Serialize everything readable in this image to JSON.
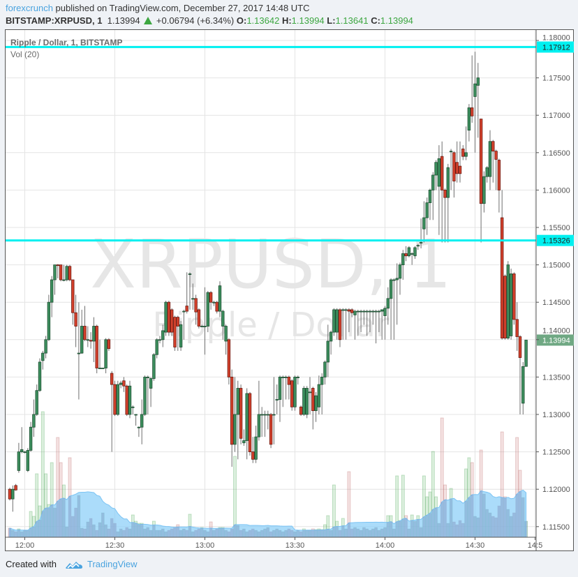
{
  "header": {
    "author": "forexcrunch",
    "published": "published on TradingView.com, December 27, 2017 14:48 UTC",
    "symbol": "BITSTAMP:XRPUSD, 1",
    "last": "1.13994",
    "change": "+0.06794 (+6.34%)",
    "o_label": "O:",
    "o": "1.13642",
    "h_label": "H:",
    "h": "1.13994",
    "l_label": "L:",
    "l": "1.13641",
    "c_label": "C:",
    "c": "1.13994",
    "up_icon": "triangle-up-icon"
  },
  "legend": {
    "series": "Ripple / Dollar, 1, BITSTAMP",
    "volume": "Vol (20)"
  },
  "watermark": {
    "line1": "XRPUSD, 1",
    "line2": "Ripple / Dollar"
  },
  "footer": {
    "created": "Created with",
    "brand": "TradingView",
    "logo_icon": "tradingview-logo-icon"
  },
  "colors": {
    "up": "#3d8f5e",
    "down": "#d5412c",
    "level_lines": "#00f0f0",
    "vol_ma": "#8fd0f8",
    "last_price_label": "#6fa883",
    "brand": "#4aa3df"
  },
  "chart_data": {
    "type": "candlestick",
    "interval_minutes": 1,
    "ylim": [
      1.1125,
      1.1815
    ],
    "grid": true,
    "y_ticks": [
      "1.18000",
      "1.17500",
      "1.17000",
      "1.16500",
      "1.16000",
      "1.15500",
      "1.15000",
      "1.14500",
      "1.14000",
      "1.13500",
      "1.13000",
      "1.12500",
      "1.12000",
      "1.11500"
    ],
    "x_ticks": [
      {
        "label": "12:00",
        "minute": 5
      },
      {
        "label": "12:30",
        "minute": 35
      },
      {
        "label": "13:00",
        "minute": 65
      },
      {
        "label": "13:30",
        "minute": 95
      },
      {
        "label": "14:00",
        "minute": 125
      },
      {
        "label": "14:30",
        "minute": 155
      },
      {
        "label": "14:5",
        "minute": 175
      }
    ],
    "first_candle_time": "11:55",
    "horizontal_levels": [
      {
        "price": 1.17912,
        "label": "1.17912"
      },
      {
        "price": 1.15326,
        "label": "1.15326"
      }
    ],
    "last_price": {
      "price": 1.13994,
      "label": "1.13994"
    },
    "volume_ma_period": 20,
    "ohlc": [
      [
        1.12,
        1.1202,
        1.1185,
        1.1187
      ],
      [
        1.1187,
        1.1205,
        1.117,
        1.12
      ],
      [
        1.1205,
        1.1207,
        1.1198,
        1.1199
      ],
      [
        1.1225,
        1.1262,
        1.1222,
        1.125
      ],
      [
        1.125,
        1.1283,
        1.1248,
        1.1253
      ],
      [
        1.125,
        1.1251,
        1.1248,
        1.125
      ],
      [
        1.1225,
        1.1255,
        1.1223,
        1.1252
      ],
      [
        1.1252,
        1.129,
        1.125,
        1.1283
      ],
      [
        1.1283,
        1.132,
        1.127,
        1.13
      ],
      [
        1.13,
        1.134,
        1.1298,
        1.1332
      ],
      [
        1.1332,
        1.1375,
        1.133,
        1.137
      ],
      [
        1.1372,
        1.1385,
        1.136,
        1.1382
      ],
      [
        1.1382,
        1.1405,
        1.1375,
        1.14
      ],
      [
        1.14,
        1.146,
        1.1398,
        1.145
      ],
      [
        1.145,
        1.1485,
        1.143,
        1.148
      ],
      [
        1.148,
        1.15,
        1.146,
        1.15
      ],
      [
        1.15,
        1.1501,
        1.1482,
        1.1499
      ],
      [
        1.15,
        1.15,
        1.1478,
        1.148
      ],
      [
        1.148,
        1.15,
        1.1478,
        1.148
      ],
      [
        1.148,
        1.15,
        1.1478,
        1.1498
      ],
      [
        1.1498,
        1.15,
        1.1478,
        1.148
      ],
      [
        1.148,
        1.148,
        1.142,
        1.1436
      ],
      [
        1.1436,
        1.146,
        1.139,
        1.1418
      ],
      [
        1.1382,
        1.145,
        1.132,
        1.1382
      ],
      [
        1.1382,
        1.144,
        1.1381,
        1.1418
      ],
      [
        1.1418,
        1.1445,
        1.1398,
        1.14
      ],
      [
        1.14,
        1.1418,
        1.139,
        1.14
      ],
      [
        1.1399,
        1.141,
        1.1388,
        1.1398
      ],
      [
        1.1398,
        1.143,
        1.137,
        1.1418
      ],
      [
        1.1418,
        1.142,
        1.1355,
        1.1362
      ],
      [
        1.1362,
        1.14,
        1.1362,
        1.1362
      ],
      [
        1.1362,
        1.1362,
        1.1362,
        1.1362
      ],
      [
        1.1362,
        1.1402,
        1.1355,
        1.14
      ],
      [
        1.14,
        1.1402,
        1.1385,
        1.1388
      ],
      [
        1.1355,
        1.1358,
        1.125,
        1.134
      ],
      [
        1.134,
        1.1345,
        1.1298,
        1.13
      ],
      [
        1.13,
        1.1345,
        1.1298,
        1.134
      ],
      [
        1.134,
        1.1345,
        1.1335,
        1.1342
      ],
      [
        1.1345,
        1.135,
        1.133,
        1.1338
      ],
      [
        1.1338,
        1.134,
        1.1298,
        1.13
      ],
      [
        1.13,
        1.1345,
        1.1295,
        1.1338
      ],
      [
        1.131,
        1.1312,
        1.13,
        1.131
      ],
      [
        1.13,
        1.13,
        1.1285,
        1.13
      ],
      [
        1.1283,
        1.1284,
        1.127,
        1.1283
      ],
      [
        1.1283,
        1.132,
        1.126,
        1.13
      ],
      [
        1.13,
        1.1352,
        1.1298,
        1.135
      ],
      [
        1.135,
        1.1352,
        1.13,
        1.135
      ],
      [
        1.1335,
        1.135,
        1.131,
        1.1348
      ],
      [
        1.1348,
        1.1382,
        1.1345,
        1.138
      ],
      [
        1.138,
        1.1402,
        1.1375,
        1.14
      ],
      [
        1.14,
        1.1405,
        1.1395,
        1.14
      ],
      [
        1.14,
        1.142,
        1.139,
        1.1412
      ],
      [
        1.141,
        1.1452,
        1.1405,
        1.145
      ],
      [
        1.145,
        1.1452,
        1.1405,
        1.141
      ],
      [
        1.144,
        1.1442,
        1.1405,
        1.141
      ],
      [
        1.143,
        1.1432,
        1.1385,
        1.139
      ],
      [
        1.143,
        1.1432,
        1.1385,
        1.1418
      ],
      [
        1.139,
        1.1425,
        1.1385,
        1.142
      ],
      [
        1.1438,
        1.144,
        1.14,
        1.1438
      ],
      [
        1.1445,
        1.149,
        1.1435,
        1.1438
      ],
      [
        1.1488,
        1.149,
        1.144,
        1.1488
      ],
      [
        1.1455,
        1.1475,
        1.144,
        1.1455
      ],
      [
        1.1455,
        1.146,
        1.142,
        1.1437
      ],
      [
        1.144,
        1.1442,
        1.1415,
        1.1418
      ],
      [
        1.1418,
        1.142,
        1.1418,
        1.1418
      ],
      [
        1.1418,
        1.147,
        1.138,
        1.1418
      ],
      [
        1.1418,
        1.1465,
        1.141,
        1.1463
      ],
      [
        1.1463,
        1.1465,
        1.144,
        1.145
      ],
      [
        1.145,
        1.1452,
        1.1445,
        1.145
      ],
      [
        1.145,
        1.1452,
        1.1435,
        1.1438
      ],
      [
        1.1438,
        1.1478,
        1.143,
        1.1472
      ],
      [
        1.1418,
        1.144,
        1.14,
        1.1438
      ],
      [
        1.1398,
        1.142,
        1.138,
        1.1418
      ],
      [
        1.14,
        1.1402,
        1.134,
        1.135
      ],
      [
        1.135,
        1.136,
        1.123,
        1.126
      ],
      [
        1.126,
        1.135,
        1.125,
        1.13
      ],
      [
        1.13,
        1.1345,
        1.124,
        1.1335
      ],
      [
        1.1335,
        1.134,
        1.126,
        1.1268
      ],
      [
        1.1262,
        1.128,
        1.1258,
        1.1265
      ],
      [
        1.1265,
        1.1335,
        1.124,
        1.1328
      ],
      [
        1.1328,
        1.133,
        1.1245,
        1.125
      ],
      [
        1.125,
        1.127,
        1.1235,
        1.124
      ],
      [
        1.124,
        1.1285,
        1.1235,
        1.127
      ],
      [
        1.127,
        1.1345,
        1.1265,
        1.13
      ],
      [
        1.13,
        1.131,
        1.127,
        1.13
      ],
      [
        1.13,
        1.1305,
        1.127,
        1.13
      ],
      [
        1.13,
        1.1305,
        1.128,
        1.13
      ],
      [
        1.13,
        1.1302,
        1.1255,
        1.126
      ],
      [
        1.13,
        1.135,
        1.126,
        1.13
      ],
      [
        1.132,
        1.134,
        1.13,
        1.132
      ],
      [
        1.132,
        1.1352,
        1.129,
        1.135
      ],
      [
        1.135,
        1.1352,
        1.131,
        1.135
      ],
      [
        1.135,
        1.1352,
        1.132,
        1.135
      ],
      [
        1.135,
        1.1352,
        1.132,
        1.134
      ],
      [
        1.1345,
        1.1347,
        1.1305,
        1.131
      ],
      [
        1.131,
        1.1352,
        1.1305,
        1.135
      ],
      [
        1.135,
        1.1352,
        1.134,
        1.135
      ],
      [
        1.131,
        1.1312,
        1.1298,
        1.13
      ],
      [
        1.13,
        1.1338,
        1.1298,
        1.1335
      ],
      [
        1.13,
        1.1338,
        1.1295,
        1.1335
      ],
      [
        1.133,
        1.135,
        1.13,
        1.133
      ],
      [
        1.1335,
        1.1337,
        1.128,
        1.1305
      ],
      [
        1.1305,
        1.133,
        1.129,
        1.1325
      ],
      [
        1.131,
        1.1352,
        1.13,
        1.134
      ],
      [
        1.134,
        1.1355,
        1.13,
        1.135
      ],
      [
        1.135,
        1.1372,
        1.134,
        1.137
      ],
      [
        1.137,
        1.142,
        1.135,
        1.1398
      ],
      [
        1.1398,
        1.1412,
        1.138,
        1.141
      ],
      [
        1.141,
        1.1442,
        1.1405,
        1.144
      ],
      [
        1.141,
        1.1442,
        1.14,
        1.144
      ],
      [
        1.144,
        1.1442,
        1.139,
        1.14
      ],
      [
        1.144,
        1.1442,
        1.14,
        1.144
      ],
      [
        1.144,
        1.1442,
        1.14,
        1.144
      ],
      [
        1.144,
        1.1442,
        1.141,
        1.1438
      ],
      [
        1.144,
        1.1442,
        1.143,
        1.1436
      ],
      [
        1.1433,
        1.144,
        1.14,
        1.1438
      ],
      [
        1.1438,
        1.144,
        1.1405,
        1.1438
      ],
      [
        1.1438,
        1.144,
        1.141,
        1.1438
      ],
      [
        1.1438,
        1.144,
        1.142,
        1.1438
      ],
      [
        1.1438,
        1.144,
        1.1405,
        1.1438
      ],
      [
        1.1438,
        1.144,
        1.141,
        1.1438
      ],
      [
        1.1438,
        1.144,
        1.142,
        1.1438
      ],
      [
        1.1438,
        1.144,
        1.1395,
        1.1438
      ],
      [
        1.1438,
        1.144,
        1.141,
        1.1438
      ],
      [
        1.1438,
        1.144,
        1.14,
        1.144
      ],
      [
        1.1432,
        1.1445,
        1.14,
        1.1442
      ],
      [
        1.1442,
        1.147,
        1.142,
        1.1455
      ],
      [
        1.1455,
        1.1482,
        1.14,
        1.148
      ],
      [
        1.148,
        1.1482,
        1.14,
        1.148
      ],
      [
        1.148,
        1.1502,
        1.142,
        1.1482
      ],
      [
        1.1482,
        1.1503,
        1.146,
        1.15
      ],
      [
        1.15,
        1.152,
        1.148,
        1.1515
      ],
      [
        1.1515,
        1.1525,
        1.1505,
        1.1512
      ],
      [
        1.1512,
        1.1525,
        1.151,
        1.1523
      ],
      [
        1.1515,
        1.1517,
        1.15,
        1.1515
      ],
      [
        1.1512,
        1.1525,
        1.1508,
        1.1523
      ],
      [
        1.1526,
        1.1528,
        1.152,
        1.1526
      ],
      [
        1.153,
        1.1562,
        1.1522,
        1.153
      ],
      [
        1.1548,
        1.1585,
        1.153,
        1.1563
      ],
      [
        1.1563,
        1.159,
        1.154,
        1.1583
      ],
      [
        1.1583,
        1.1602,
        1.156,
        1.16
      ],
      [
        1.16,
        1.1624,
        1.156,
        1.162
      ],
      [
        1.162,
        1.164,
        1.16,
        1.1637
      ],
      [
        1.1605,
        1.166,
        1.154,
        1.1642
      ],
      [
        1.1645,
        1.1665,
        1.153,
        1.16
      ],
      [
        1.16,
        1.1602,
        1.153,
        1.159
      ],
      [
        1.159,
        1.1635,
        1.153,
        1.163
      ],
      [
        1.1652,
        1.1655,
        1.16,
        1.1652
      ],
      [
        1.165,
        1.1652,
        1.159,
        1.1612
      ],
      [
        1.1637,
        1.1665,
        1.161,
        1.1622
      ],
      [
        1.1632,
        1.1665,
        1.161,
        1.1622
      ],
      [
        1.1655,
        1.166,
        1.164,
        1.1645
      ],
      [
        1.1645,
        1.1685,
        1.164,
        1.165
      ],
      [
        1.168,
        1.1715,
        1.1665,
        1.171
      ],
      [
        1.171,
        1.178,
        1.169,
        1.1699
      ],
      [
        1.1725,
        1.1785,
        1.165,
        1.1742
      ],
      [
        1.174,
        1.177,
        1.167,
        1.175
      ],
      [
        1.1695,
        1.1695,
        1.153,
        1.1582
      ],
      [
        1.1582,
        1.1625,
        1.157,
        1.1618
      ],
      [
        1.1618,
        1.1632,
        1.161,
        1.163
      ],
      [
        1.1618,
        1.168,
        1.16,
        1.1665
      ],
      [
        1.1665,
        1.1667,
        1.161,
        1.1652
      ],
      [
        1.1652,
        1.1654,
        1.16,
        1.1641
      ],
      [
        1.164,
        1.1642,
        1.157,
        1.16
      ],
      [
        1.1563,
        1.16,
        1.14,
        1.1402
      ],
      [
        1.1485,
        1.1487,
        1.14,
        1.1402
      ],
      [
        1.1402,
        1.1505,
        1.14,
        1.15
      ],
      [
        1.1405,
        1.1495,
        1.14,
        1.1488
      ],
      [
        1.1488,
        1.149,
        1.142,
        1.1427
      ],
      [
        1.1427,
        1.145,
        1.1385,
        1.1404
      ],
      [
        1.1404,
        1.1406,
        1.13,
        1.1376
      ],
      [
        1.1315,
        1.137,
        1.13,
        1.1364
      ],
      [
        1.13642,
        1.13994,
        1.13641,
        1.13994
      ]
    ],
    "volume_relative": [
      13,
      10,
      8,
      12,
      8,
      10,
      10,
      37,
      30,
      91,
      45,
      180,
      91,
      47,
      107,
      42,
      143,
      107,
      75,
      15,
      114,
      30,
      42,
      60,
      13,
      12,
      22,
      27,
      18,
      10,
      21,
      35,
      18,
      12,
      27,
      20,
      8,
      12,
      10,
      14,
      12,
      32,
      23,
      20,
      20,
      12,
      14,
      10,
      23,
      10,
      10,
      12,
      8,
      10,
      12,
      14,
      18,
      10,
      12,
      10,
      33,
      8,
      10,
      12,
      14,
      10,
      8,
      22,
      10,
      12,
      14,
      14,
      10,
      8,
      12,
      116,
      17,
      10,
      12,
      8,
      10,
      12,
      10,
      8,
      10,
      12,
      14,
      8,
      10,
      12,
      10,
      8,
      10,
      12,
      10,
      8,
      10,
      8,
      12,
      10,
      10,
      12,
      11,
      12,
      11,
      18,
      31,
      10,
      75,
      23,
      10,
      27,
      12,
      94,
      12,
      14,
      12,
      10,
      14,
      12,
      10,
      12,
      14,
      10,
      12,
      14,
      31,
      31,
      12,
      88,
      24,
      89,
      31,
      12,
      32,
      23,
      31,
      14,
      88,
      58,
      65,
      123,
      58,
      20,
      171,
      75,
      20,
      70,
      22,
      18,
      24,
      20,
      98,
      114,
      107,
      30,
      28,
      125,
      62,
      40,
      35,
      30,
      28,
      45,
      151,
      58,
      40,
      30,
      35,
      143,
      96,
      57,
      23
    ]
  }
}
